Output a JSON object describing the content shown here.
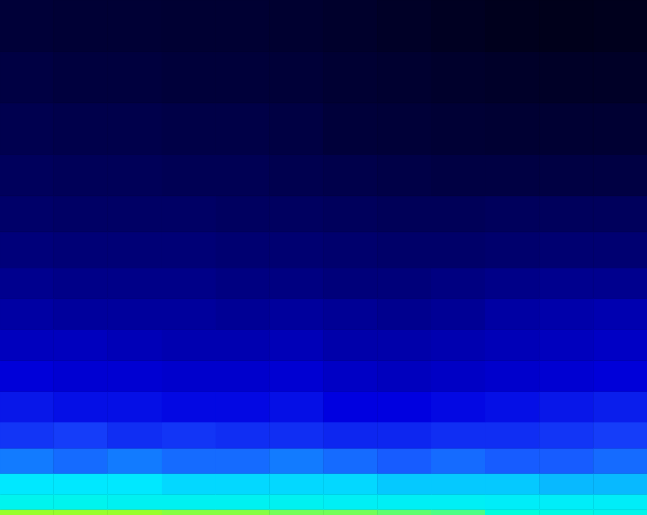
{
  "chart_data": {
    "type": "heatmap",
    "xlim": [
      0,
      12
    ],
    "ylim": [
      0,
      100
    ],
    "x_bins": [
      0,
      1,
      2,
      3,
      4,
      5,
      6,
      7,
      8,
      9,
      10,
      11,
      12
    ],
    "y_bins": [
      0,
      1,
      4,
      8,
      13,
      18,
      24,
      30,
      36,
      42,
      48,
      55,
      62,
      70,
      80,
      90,
      100
    ],
    "zlim": [
      0,
      100
    ],
    "tick_labels": false,
    "cells": [
      [
        88,
        88,
        88,
        87,
        87,
        86,
        86,
        85,
        84,
        80,
        78,
        76
      ],
      [
        75,
        75,
        74,
        74,
        74,
        74,
        73,
        73,
        73,
        72,
        72,
        72
      ],
      [
        70,
        70,
        70,
        69,
        69,
        69,
        69,
        68,
        68,
        68,
        67,
        67
      ],
      [
        63,
        62,
        63,
        62,
        62,
        63,
        62,
        61,
        62,
        61,
        61,
        62
      ],
      [
        57,
        58,
        56,
        57,
        56,
        56,
        55,
        55,
        56,
        56,
        57,
        58
      ],
      [
        53,
        52,
        52,
        51,
        51,
        52,
        50,
        50,
        51,
        52,
        53,
        54
      ],
      [
        49,
        48,
        48,
        47,
        47,
        48,
        46,
        45,
        46,
        47,
        48,
        49
      ],
      [
        45,
        45,
        44,
        43,
        43,
        44,
        42,
        42,
        43,
        44,
        45,
        46
      ],
      [
        41,
        40,
        40,
        40,
        39,
        40,
        39,
        38,
        39,
        41,
        42,
        43
      ],
      [
        38,
        37,
        37,
        37,
        36,
        36,
        35,
        35,
        36,
        37,
        38,
        38
      ],
      [
        35,
        34,
        34,
        34,
        33,
        33,
        32,
        31,
        31,
        32,
        33,
        33
      ],
      [
        31,
        30,
        30,
        30,
        29,
        29,
        28,
        27,
        27,
        28,
        28,
        28
      ],
      [
        28,
        27,
        27,
        26,
        26,
        25,
        24,
        23,
        22,
        22,
        22,
        22
      ],
      [
        25,
        24,
        24,
        23,
        23,
        22,
        20,
        19,
        18,
        17,
        17,
        17
      ],
      [
        22,
        21,
        21,
        20,
        20,
        19,
        17,
        16,
        14,
        13,
        12,
        12
      ],
      [
        19,
        18,
        18,
        17,
        17,
        16,
        14,
        12,
        10,
        8,
        7,
        8
      ]
    ]
  }
}
